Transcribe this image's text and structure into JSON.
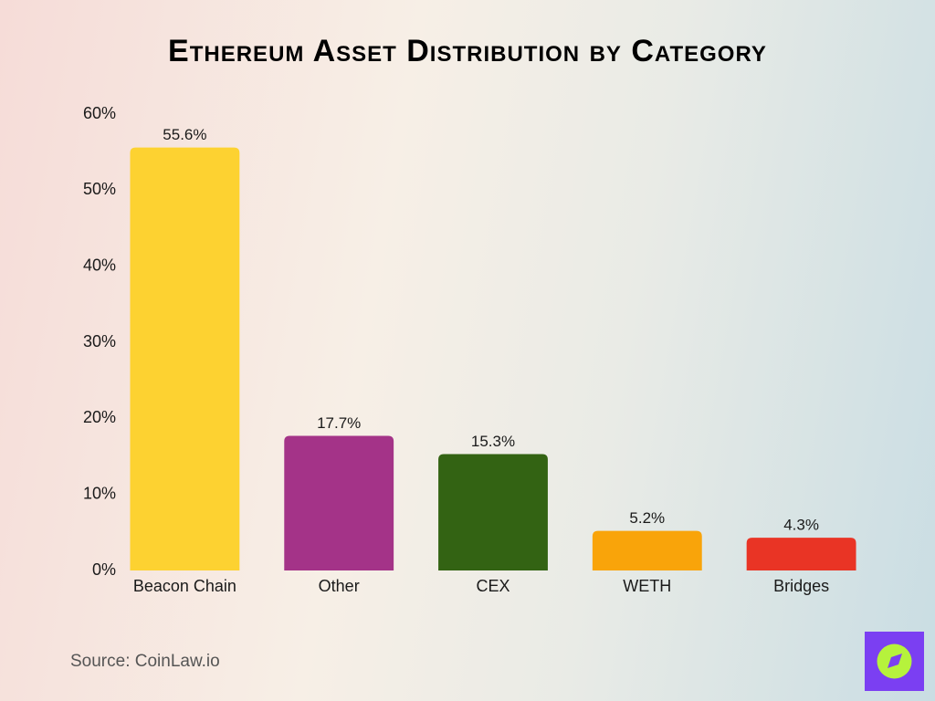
{
  "chart_data": {
    "type": "bar",
    "title": "Ethereum Asset Distribution by Category",
    "categories": [
      "Beacon Chain",
      "Other",
      "CEX",
      "WETH",
      "Bridges"
    ],
    "values": [
      55.6,
      17.7,
      15.3,
      5.2,
      4.3
    ],
    "value_labels": [
      "55.6%",
      "17.7%",
      "15.3%",
      "5.2%",
      "4.3%"
    ],
    "colors": [
      "#fdd231",
      "#a43388",
      "#336313",
      "#f9a40a",
      "#e93425"
    ],
    "ylim": [
      0,
      60
    ],
    "yticks": [
      {
        "value": 0,
        "label": "0%"
      },
      {
        "value": 10,
        "label": "10%"
      },
      {
        "value": 20,
        "label": "20%"
      },
      {
        "value": 30,
        "label": "30%"
      },
      {
        "value": 40,
        "label": "40%"
      },
      {
        "value": 50,
        "label": "50%"
      },
      {
        "value": 60,
        "label": "60%"
      }
    ],
    "grid": false,
    "source": "Source: CoinLaw.io"
  }
}
